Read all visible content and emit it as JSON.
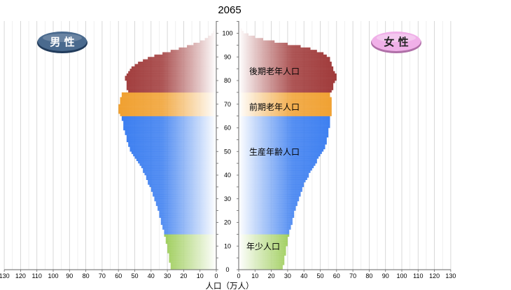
{
  "chart_data": {
    "type": "bar",
    "title": "2065",
    "xlabel": "人口（万人）",
    "x_ticks": [
      130,
      120,
      110,
      100,
      90,
      80,
      70,
      60,
      50,
      40,
      30,
      20,
      10,
      0
    ],
    "y_ticks": [
      0,
      10,
      20,
      30,
      40,
      50,
      60,
      70,
      80,
      90,
      100
    ],
    "xlim": [
      0,
      130
    ],
    "ylim": [
      0,
      105
    ],
    "sex_labels": {
      "male": "男 性",
      "female": "女 性"
    },
    "colors": {
      "young": "#8cc43c",
      "working": "#3a7df0",
      "early_elderly": "#f0a030",
      "late_elderly": "#a03a3a",
      "male_badge": "#3a5a80",
      "female_badge": "#e8a8e0"
    },
    "age_groups": [
      {
        "name": "年少人口",
        "ages": [
          0,
          14
        ]
      },
      {
        "name": "生産年齢人口",
        "ages": [
          15,
          64
        ]
      },
      {
        "name": "前期老年人口",
        "ages": [
          65,
          74
        ]
      },
      {
        "name": "後期老年人口",
        "ages": [
          75,
          105
        ]
      }
    ],
    "series": [
      {
        "name": "男 性",
        "key": "male",
        "values": [
          28,
          28,
          28,
          29,
          29,
          29,
          29,
          30,
          30,
          30,
          30,
          31,
          31,
          31,
          32,
          32,
          32,
          33,
          33,
          34,
          34,
          34,
          35,
          35,
          35,
          36,
          36,
          37,
          37,
          38,
          38,
          39,
          39,
          40,
          40,
          41,
          42,
          42,
          43,
          43,
          44,
          45,
          45,
          46,
          47,
          48,
          49,
          50,
          51,
          52,
          53,
          53,
          54,
          54,
          55,
          55,
          55,
          56,
          56,
          57,
          57,
          57,
          57,
          58,
          58,
          59,
          60,
          60,
          60,
          60,
          59,
          59,
          59,
          58,
          58,
          54,
          55,
          55,
          55,
          55,
          56,
          56,
          55,
          54,
          53,
          52,
          50,
          48,
          45,
          42,
          38,
          33,
          28,
          23,
          18,
          14,
          10,
          7,
          5,
          3,
          2,
          1.5,
          1,
          0.5,
          0.3,
          0.2
        ]
      },
      {
        "name": "女 性",
        "key": "female",
        "values": [
          27,
          27,
          28,
          28,
          28,
          28,
          29,
          29,
          29,
          29,
          30,
          30,
          30,
          30,
          31,
          31,
          31,
          32,
          32,
          33,
          33,
          33,
          34,
          34,
          34,
          35,
          35,
          36,
          36,
          37,
          37,
          38,
          38,
          39,
          39,
          40,
          40,
          41,
          42,
          43,
          43,
          44,
          45,
          46,
          47,
          48,
          48,
          49,
          50,
          51,
          52,
          53,
          53,
          54,
          54,
          54,
          55,
          55,
          55,
          55,
          56,
          56,
          56,
          56,
          56,
          57,
          57,
          57,
          57,
          57,
          57,
          57,
          57,
          56,
          56,
          57,
          58,
          58,
          58,
          59,
          60,
          60,
          60,
          59,
          58,
          58,
          57,
          57,
          56,
          56,
          54,
          52,
          48,
          44,
          38,
          30,
          22,
          15,
          10,
          6,
          3,
          2,
          1.2,
          0.8,
          0.4,
          0.2
        ]
      }
    ]
  }
}
